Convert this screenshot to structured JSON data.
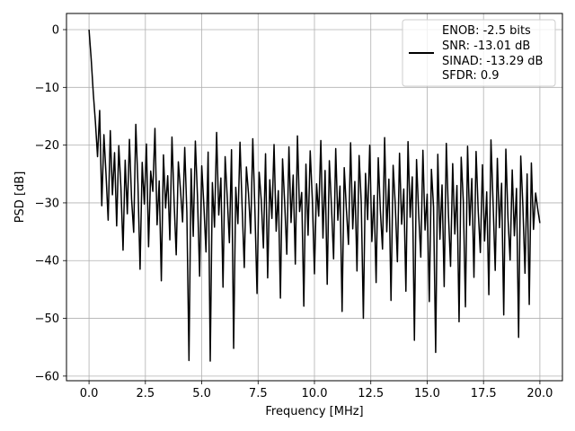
{
  "chart_data": {
    "type": "line",
    "title": "",
    "xlabel": "Frequency [MHz]",
    "ylabel": "PSD [dB]",
    "xlim": [
      -1.0,
      21.0
    ],
    "ylim": [
      -60.8,
      2.8
    ],
    "xticks": [
      0.0,
      2.5,
      5.0,
      7.5,
      10.0,
      12.5,
      15.0,
      17.5,
      20.0
    ],
    "xtick_labels": [
      "0.0",
      "2.5",
      "5.0",
      "7.5",
      "10.0",
      "12.5",
      "15.0",
      "17.5",
      "20.0"
    ],
    "yticks": [
      0,
      -10,
      -20,
      -30,
      -40,
      -50,
      -60
    ],
    "ytick_labels": [
      "0",
      "−10",
      "−20",
      "−30",
      "−40",
      "−50",
      "−60"
    ],
    "grid": true,
    "legend_position": "top-right",
    "series": [
      {
        "color": "#000000",
        "x_start": 0.0,
        "x_end": 20.0,
        "values": [
          0.0,
          -5.0,
          -11.0,
          -16.0,
          -22.0,
          -14.0,
          -30.5,
          -18.2,
          -25.1,
          -33.0,
          -17.5,
          -28.6,
          -21.3,
          -34.0,
          -20.1,
          -27.4,
          -38.2,
          -22.6,
          -31.9,
          -19.0,
          -29.3,
          -35.1,
          -16.4,
          -26.8,
          -41.5,
          -23.0,
          -30.2,
          -19.8,
          -37.6,
          -24.5,
          -28.0,
          -17.1,
          -33.8,
          -26.2,
          -43.5,
          -21.7,
          -30.9,
          -25.3,
          -36.4,
          -18.6,
          -29.8,
          -39.0,
          -22.9,
          -27.7,
          -33.3,
          -20.4,
          -31.6,
          -57.3,
          -24.1,
          -35.8,
          -19.3,
          -28.9,
          -42.7,
          -23.6,
          -30.4,
          -38.5,
          -21.2,
          -57.4,
          -26.5,
          -34.2,
          -17.8,
          -32.1,
          -25.7,
          -44.6,
          -22.0,
          -29.1,
          -36.9,
          -20.8,
          -55.2,
          -27.3,
          -33.6,
          -19.5,
          -30.8,
          -41.2,
          -23.8,
          -28.4,
          -35.3,
          -18.9,
          -31.2,
          -45.7,
          -24.7,
          -29.6,
          -37.8,
          -21.5,
          -43.0,
          -26.0,
          -32.7,
          -19.9,
          -34.9,
          -27.9,
          -46.5,
          -22.4,
          -30.0,
          -38.9,
          -20.3,
          -33.4,
          -25.2,
          -40.6,
          -18.4,
          -31.5,
          -28.2,
          -47.9,
          -23.3,
          -35.6,
          -21.0,
          -29.4,
          -42.3,
          -26.7,
          -32.3,
          -19.2,
          -36.1,
          -24.4,
          -44.1,
          -22.7,
          -30.6,
          -39.7,
          -20.6,
          -33.0,
          -27.1,
          -48.8,
          -23.9,
          -31.0,
          -37.2,
          -19.6,
          -34.5,
          -26.3,
          -41.8,
          -21.8,
          -29.9,
          -50.0,
          -24.9,
          -32.9,
          -20.0,
          -36.7,
          -28.7,
          -43.8,
          -22.2,
          -31.4,
          -38.0,
          -18.7,
          -35.0,
          -25.9,
          -46.9,
          -23.5,
          -30.3,
          -40.2,
          -21.4,
          -33.7,
          -27.6,
          -45.3,
          -19.4,
          -32.5,
          -25.5,
          -53.8,
          -22.5,
          -31.8,
          -39.4,
          -20.9,
          -34.7,
          -28.5,
          -47.1,
          -24.2,
          -30.7,
          -55.9,
          -21.6,
          -36.3,
          -26.9,
          -44.5,
          -19.7,
          -32.0,
          -41.0,
          -23.2,
          -35.4,
          -27.0,
          -50.6,
          -22.1,
          -29.7,
          -48.0,
          -20.2,
          -33.9,
          -25.8,
          -42.9,
          -21.1,
          -31.3,
          -38.6,
          -23.4,
          -36.6,
          -28.1,
          -45.9,
          -19.1,
          -30.1,
          -41.7,
          -22.3,
          -34.3,
          -26.6,
          -49.4,
          -20.7,
          -32.6,
          -39.9,
          -24.3,
          -35.7,
          -27.5,
          -53.3,
          -21.9,
          -30.5,
          -42.2,
          -25.0,
          -47.6,
          -23.1,
          -34.6,
          -28.3,
          -31.1,
          -33.5
        ]
      }
    ],
    "legend": {
      "lines": [
        "ENOB: -2.5 bits",
        "SNR: -13.01 dB",
        "SINAD: -13.29 dB",
        "SFDR: 0.9"
      ],
      "color": "#000000"
    }
  }
}
